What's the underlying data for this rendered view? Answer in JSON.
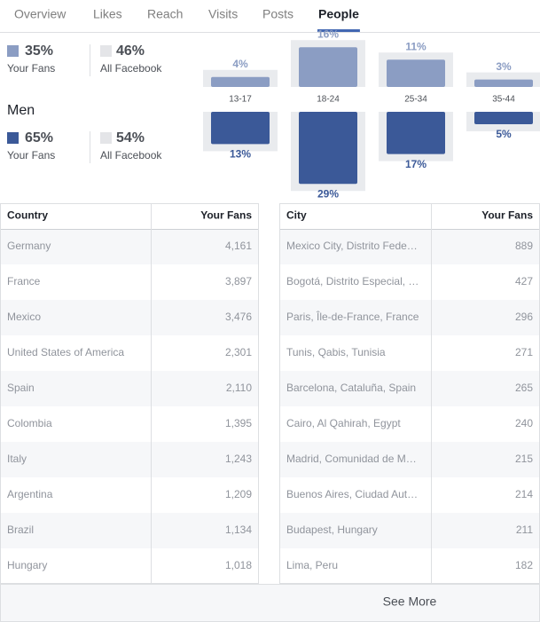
{
  "tabs": [
    "Overview",
    "Likes",
    "Reach",
    "Visits",
    "Posts",
    "People"
  ],
  "active_tab": 5,
  "summary": {
    "women": {
      "your_fans": "35%",
      "your_fans_label": "Your Fans",
      "all_facebook": "46%",
      "all_facebook_label": "All Facebook"
    },
    "men": {
      "label": "Men",
      "your_fans": "65%",
      "your_fans_label": "Your Fans",
      "all_facebook": "54%",
      "all_facebook_label": "All Facebook"
    }
  },
  "age_chart": {
    "categories": [
      "13-17",
      "18-24",
      "25-34",
      "35-44"
    ],
    "women": {
      "values": [
        4,
        16,
        11,
        3
      ],
      "value_labels": [
        "4%",
        "16%",
        "11%",
        "3%"
      ],
      "color": "#8b9dc3"
    },
    "men": {
      "values": [
        13,
        29,
        17,
        5
      ],
      "value_labels": [
        "13%",
        "29%",
        "17%",
        "5%"
      ],
      "color": "#3b5998"
    }
  },
  "country_table": {
    "header": [
      "Country",
      "Your Fans"
    ],
    "rows": [
      [
        "Germany",
        "4,161"
      ],
      [
        "France",
        "3,897"
      ],
      [
        "Mexico",
        "3,476"
      ],
      [
        "United States of America",
        "2,301"
      ],
      [
        "Spain",
        "2,110"
      ],
      [
        "Colombia",
        "1,395"
      ],
      [
        "Italy",
        "1,243"
      ],
      [
        "Argentina",
        "1,209"
      ],
      [
        "Brazil",
        "1,134"
      ],
      [
        "Hungary",
        "1,018"
      ]
    ]
  },
  "city_table": {
    "header": [
      "City",
      "Your Fans"
    ],
    "rows": [
      [
        "Mexico City, Distrito Fede…",
        "889"
      ],
      [
        "Bogotá, Distrito Especial, …",
        "427"
      ],
      [
        "Paris, Île-de-France, France",
        "296"
      ],
      [
        "Tunis, Qabis, Tunisia",
        "271"
      ],
      [
        "Barcelona, Cataluña, Spain",
        "265"
      ],
      [
        "Cairo, Al Qahirah, Egypt",
        "240"
      ],
      [
        "Madrid, Comunidad de M…",
        "215"
      ],
      [
        "Buenos Aires, Ciudad Aut…",
        "214"
      ],
      [
        "Budapest, Hungary",
        "211"
      ],
      [
        "Lima, Peru",
        "182"
      ]
    ]
  },
  "see_more": "See More"
}
